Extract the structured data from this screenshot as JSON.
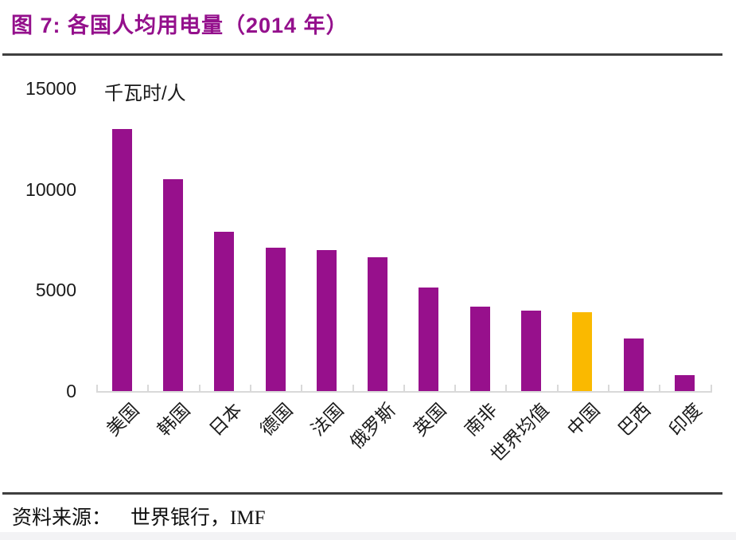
{
  "header": {
    "title": "图 7:  各国人均用电量（2014 年）",
    "title_color": "#94108c"
  },
  "chart_data": {
    "type": "bar",
    "title": "各国人均用电量（2014 年）",
    "unit_label": "千瓦时/人",
    "categories": [
      "美国",
      "韩国",
      "日本",
      "德国",
      "法国",
      "俄罗斯",
      "英国",
      "南非",
      "世界均值",
      "中国",
      "巴西",
      "印度"
    ],
    "values": [
      13000,
      10500,
      7900,
      7100,
      7000,
      6650,
      5150,
      4200,
      4000,
      3900,
      2600,
      800
    ],
    "ylim": [
      0,
      15000
    ],
    "y_ticks": [
      0,
      5000,
      10000,
      15000
    ],
    "xlabel": "",
    "ylabel": "千瓦时/人",
    "grid": false,
    "legend": null,
    "bar_color": "#97108c",
    "highlight_index": 9,
    "highlight_color": "#fab900",
    "axis_color": "#d9d9d9"
  },
  "source": {
    "label": "资料来源：",
    "text": "世界银行，IMF"
  }
}
